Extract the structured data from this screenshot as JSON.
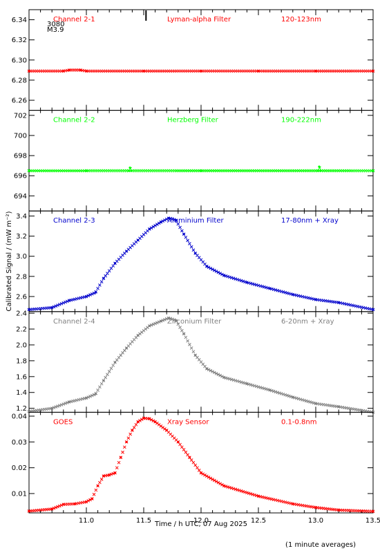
{
  "chart_data": {
    "type": "scatter",
    "x_axis": {
      "label": "Time / h UTC, 07 Aug 2025",
      "range": [
        10.5,
        13.5
      ],
      "ticks": [
        11.0,
        11.5,
        12.0,
        12.5,
        13.0,
        13.5
      ],
      "tick_labels": [
        "11.0",
        "11.5",
        "12.0",
        "12.5",
        "13.0",
        "13.5"
      ]
    },
    "y_axis_title": "Calibrated Signal / (mW m⁻²)",
    "footnote": "(1 minute averages)",
    "event_marker": {
      "x": 11.52,
      "labels": [
        "3080",
        "M3.9"
      ]
    },
    "panels": [
      {
        "id": "channel-2-1",
        "channel": "Channel 2-1",
        "filter": "Lyman-alpha Filter",
        "band": "120-123nm",
        "color": "#ff0000",
        "ylim": [
          6.25,
          6.35
        ],
        "y_ticks": [
          6.26,
          6.28,
          6.3,
          6.32,
          6.34
        ],
        "y_tick_labels": [
          "6.26",
          "6.28",
          "6.30",
          "6.32",
          "6.34"
        ],
        "x": [
          10.5,
          10.8,
          10.85,
          10.95,
          11.0,
          11.5,
          12.0,
          12.5,
          13.0,
          13.5
        ],
        "y": [
          6.289,
          6.289,
          6.29,
          6.29,
          6.289,
          6.289,
          6.289,
          6.289,
          6.289,
          6.289
        ]
      },
      {
        "id": "channel-2-2",
        "channel": "Channel 2-2",
        "filter": "Herzberg Filter",
        "band": "190-222nm",
        "color": "#00ff00",
        "ylim": [
          692.5,
          702.5
        ],
        "y_ticks": [
          694,
          696,
          698,
          700,
          702
        ],
        "y_tick_labels": [
          "694",
          "696",
          "698",
          "700",
          "702"
        ],
        "x": [
          10.5,
          11.0,
          11.37,
          11.38,
          11.39,
          12.0,
          13.02,
          13.03,
          13.04,
          13.5
        ],
        "y": [
          696.5,
          696.5,
          696.5,
          696.8,
          696.5,
          696.5,
          696.5,
          696.9,
          696.5,
          696.5
        ]
      },
      {
        "id": "channel-2-3",
        "channel": "Channel 2-3",
        "filter": "Aluminium Filter",
        "band": "17-80nm + Xray",
        "color": "#0000cc",
        "ylim": [
          2.45,
          3.45
        ],
        "y_ticks": [
          2.6,
          2.8,
          3.0,
          3.2,
          3.4
        ],
        "y_tick_labels": [
          "2.6",
          "2.8",
          "3.0",
          "3.2",
          "3.4"
        ],
        "x": [
          10.5,
          10.7,
          10.85,
          11.0,
          11.08,
          11.15,
          11.25,
          11.35,
          11.45,
          11.55,
          11.65,
          11.72,
          11.78,
          11.85,
          11.95,
          12.05,
          12.2,
          12.4,
          12.6,
          12.8,
          13.0,
          13.2,
          13.5
        ],
        "y": [
          2.47,
          2.49,
          2.56,
          2.6,
          2.64,
          2.78,
          2.93,
          3.05,
          3.16,
          3.27,
          3.34,
          3.38,
          3.36,
          3.22,
          3.03,
          2.9,
          2.81,
          2.74,
          2.68,
          2.62,
          2.57,
          2.54,
          2.47
        ]
      },
      {
        "id": "channel-2-4",
        "channel": "Channel 2-4",
        "filter": "Zirconium Filter",
        "band": "6-20nm + Xray",
        "color": "#808080",
        "ylim": [
          1.15,
          2.42
        ],
        "y_ticks": [
          1.2,
          1.4,
          1.6,
          1.8,
          2.0,
          2.2,
          2.4
        ],
        "y_tick_labels": [
          "1.2",
          "1.4",
          "1.6",
          "1.8",
          "2.0",
          "2.2",
          "2.4"
        ],
        "x": [
          10.5,
          10.7,
          10.85,
          11.0,
          11.08,
          11.15,
          11.25,
          11.35,
          11.45,
          11.55,
          11.65,
          11.72,
          11.78,
          11.85,
          11.95,
          12.05,
          12.2,
          12.4,
          12.6,
          12.8,
          13.0,
          13.2,
          13.5
        ],
        "y": [
          1.16,
          1.2,
          1.28,
          1.33,
          1.38,
          1.55,
          1.78,
          1.96,
          2.12,
          2.24,
          2.3,
          2.34,
          2.31,
          2.14,
          1.87,
          1.7,
          1.59,
          1.51,
          1.43,
          1.34,
          1.26,
          1.22,
          1.15
        ]
      },
      {
        "id": "goes",
        "channel": "GOES",
        "filter": "Xray Sensor",
        "band": "0.1-0.8nm",
        "color": "#ff0000",
        "ylim": [
          0.0025,
          0.0415
        ],
        "y_ticks": [
          0.01,
          0.02,
          0.03,
          0.04
        ],
        "y_tick_labels": [
          "0.01",
          "0.02",
          "0.03",
          "0.04"
        ],
        "x": [
          10.5,
          10.7,
          10.8,
          10.9,
          11.0,
          11.05,
          11.1,
          11.15,
          11.2,
          11.25,
          11.3,
          11.35,
          11.4,
          11.45,
          11.5,
          11.55,
          11.6,
          11.7,
          11.8,
          11.9,
          12.0,
          12.2,
          12.5,
          12.8,
          13.0,
          13.2,
          13.5
        ],
        "y": [
          0.0032,
          0.004,
          0.0058,
          0.006,
          0.0068,
          0.008,
          0.013,
          0.0168,
          0.0172,
          0.018,
          0.024,
          0.03,
          0.0345,
          0.0378,
          0.0392,
          0.039,
          0.0378,
          0.0345,
          0.03,
          0.024,
          0.018,
          0.013,
          0.009,
          0.006,
          0.0046,
          0.0036,
          0.0031
        ]
      }
    ]
  }
}
